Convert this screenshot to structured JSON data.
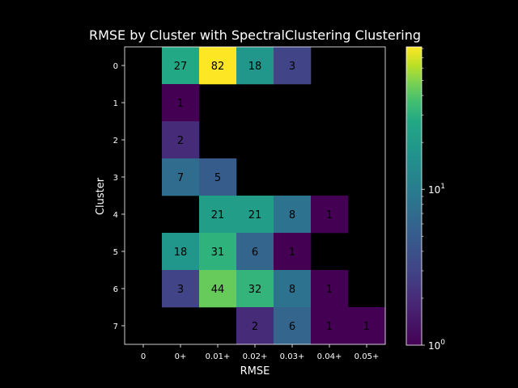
{
  "chart_data": {
    "type": "heatmap",
    "title": "RMSE by Cluster with SpectralClustering Clustering",
    "xlabel": "RMSE",
    "ylabel": "Cluster",
    "x_categories": [
      "0",
      "0+",
      "0.01+",
      "0.02+",
      "0.03+",
      "0.04+",
      "0.05+"
    ],
    "y_categories": [
      "0",
      "1",
      "2",
      "3",
      "4",
      "5",
      "6",
      "7"
    ],
    "values": [
      [
        null,
        27,
        82,
        18,
        3,
        null,
        null
      ],
      [
        null,
        1,
        null,
        null,
        null,
        null,
        null
      ],
      [
        null,
        2,
        null,
        null,
        null,
        null,
        null
      ],
      [
        null,
        7,
        5,
        null,
        null,
        null,
        null
      ],
      [
        null,
        null,
        21,
        21,
        8,
        1,
        null
      ],
      [
        null,
        18,
        31,
        6,
        1,
        null,
        null
      ],
      [
        null,
        3,
        44,
        32,
        8,
        1,
        null
      ],
      [
        null,
        null,
        null,
        2,
        6,
        1,
        1
      ]
    ],
    "colormap": "viridis",
    "color_scale": "log",
    "color_range": [
      1,
      82
    ],
    "colorbar_ticks": [
      {
        "value": 1,
        "base": "10",
        "exp": "0"
      },
      {
        "value": 10,
        "base": "10",
        "exp": "1"
      }
    ],
    "background": "#000000",
    "empty_cell_color": "#000000"
  }
}
